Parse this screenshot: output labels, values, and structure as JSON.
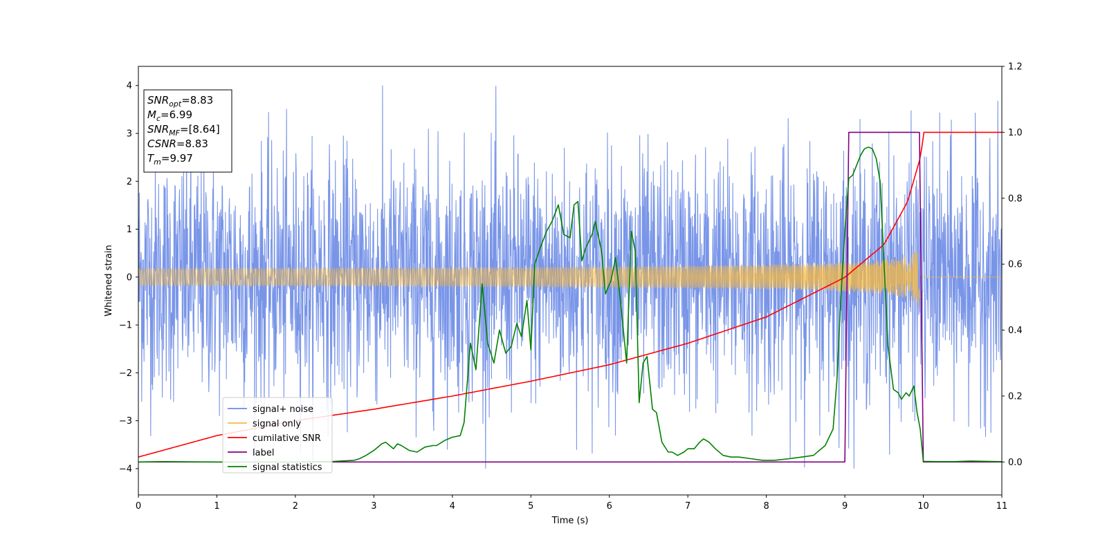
{
  "chart_data": {
    "type": "line",
    "title": "",
    "xlabel": "Time (s)",
    "ylabel": "Whitened strain",
    "xlim": [
      0,
      11
    ],
    "ylim_left": [
      -4.55,
      4.4
    ],
    "ylim_right": [
      -0.1,
      1.2
    ],
    "x_ticks": [
      0,
      1,
      2,
      3,
      4,
      5,
      6,
      7,
      8,
      9,
      10,
      11
    ],
    "y_ticks_left": [
      -4,
      -3,
      -2,
      -1,
      0,
      1,
      2,
      3,
      4
    ],
    "y_ticks_right": [
      0.0,
      0.2,
      0.4,
      0.6,
      0.8,
      1.0,
      1.2
    ],
    "grid": false,
    "legend_position": "bottom-left",
    "series": [
      {
        "name": "signal+ noise",
        "axis": "left",
        "color": "#6a89e6",
        "description_kind": "noise",
        "x_range": [
          0,
          11
        ],
        "envelope_abs": 2.3,
        "peak_abs_max": 4.0,
        "samples": 2600
      },
      {
        "name": "signal only",
        "axis": "left",
        "color": "#f5b942",
        "description_kind": "chirp",
        "x_range": [
          0,
          9.97
        ],
        "amplitude_start": 0.03,
        "amplitude_end": 0.75,
        "after_merger_value": 0.0
      },
      {
        "name": "cumilative SNR",
        "axis": "right",
        "color": "#ff0000",
        "x": [
          0,
          1,
          2,
          3,
          4,
          5,
          6,
          7,
          8,
          9,
          9.5,
          9.8,
          9.97,
          10.0,
          11
        ],
        "values": [
          0.015,
          0.08,
          0.125,
          0.16,
          0.2,
          0.245,
          0.295,
          0.36,
          0.44,
          0.56,
          0.66,
          0.79,
          0.93,
          1.0,
          1.0
        ]
      },
      {
        "name": "label",
        "axis": "right",
        "color": "#800080",
        "x": [
          0,
          9.0,
          9.05,
          9.95,
          10.0,
          11
        ],
        "values": [
          0,
          0,
          1,
          1,
          0,
          0
        ]
      },
      {
        "name": "signal statistics",
        "axis": "right",
        "color": "#008000",
        "x": [
          0,
          0.3,
          1,
          2,
          2.5,
          2.75,
          2.82,
          2.9,
          3.0,
          3.1,
          3.15,
          3.2,
          3.25,
          3.3,
          3.35,
          3.45,
          3.55,
          3.65,
          3.75,
          3.8,
          3.9,
          4.0,
          4.1,
          4.15,
          4.23,
          4.3,
          4.38,
          4.45,
          4.53,
          4.6,
          4.68,
          4.75,
          4.82,
          4.88,
          4.95,
          5.0,
          5.05,
          5.12,
          5.2,
          5.27,
          5.35,
          5.42,
          5.5,
          5.55,
          5.6,
          5.65,
          5.7,
          5.78,
          5.82,
          5.9,
          5.95,
          6.02,
          6.08,
          6.15,
          6.22,
          6.28,
          6.33,
          6.38,
          6.43,
          6.48,
          6.55,
          6.6,
          6.67,
          6.75,
          6.8,
          6.87,
          6.95,
          7.0,
          7.08,
          7.15,
          7.2,
          7.27,
          7.35,
          7.45,
          7.55,
          7.65,
          7.8,
          7.95,
          8.1,
          8.3,
          8.45,
          8.6,
          8.75,
          8.85,
          8.9,
          8.95,
          9.0,
          9.05,
          9.1,
          9.15,
          9.2,
          9.25,
          9.3,
          9.35,
          9.4,
          9.45,
          9.5,
          9.55,
          9.62,
          9.68,
          9.72,
          9.78,
          9.82,
          9.88,
          9.92,
          9.96,
          10.0,
          10.2,
          10.4,
          10.6,
          10.8,
          11.0
        ],
        "values": [
          0.0,
          0.001,
          0.0,
          0.0,
          0.002,
          0.005,
          0.01,
          0.02,
          0.035,
          0.055,
          0.06,
          0.05,
          0.04,
          0.055,
          0.05,
          0.035,
          0.03,
          0.045,
          0.05,
          0.05,
          0.065,
          0.075,
          0.08,
          0.12,
          0.36,
          0.28,
          0.54,
          0.36,
          0.3,
          0.4,
          0.33,
          0.35,
          0.42,
          0.38,
          0.49,
          0.34,
          0.6,
          0.65,
          0.7,
          0.73,
          0.78,
          0.69,
          0.68,
          0.78,
          0.79,
          0.61,
          0.65,
          0.69,
          0.73,
          0.64,
          0.51,
          0.55,
          0.62,
          0.47,
          0.3,
          0.7,
          0.64,
          0.18,
          0.3,
          0.32,
          0.16,
          0.15,
          0.06,
          0.03,
          0.03,
          0.02,
          0.03,
          0.04,
          0.04,
          0.06,
          0.07,
          0.06,
          0.04,
          0.02,
          0.015,
          0.015,
          0.01,
          0.005,
          0.005,
          0.01,
          0.015,
          0.02,
          0.05,
          0.1,
          0.25,
          0.5,
          0.7,
          0.86,
          0.87,
          0.9,
          0.93,
          0.95,
          0.955,
          0.95,
          0.92,
          0.85,
          0.6,
          0.35,
          0.22,
          0.21,
          0.19,
          0.21,
          0.2,
          0.23,
          0.15,
          0.1,
          0.002,
          0.001,
          0.001,
          0.003,
          0.002,
          0.001
        ]
      }
    ],
    "annotation": {
      "lines": [
        {
          "main": "SNR",
          "sub": "opt",
          "rest": "=8.83"
        },
        {
          "main": "M",
          "sub": "c",
          "rest": "=6.99"
        },
        {
          "main": "SNR",
          "sub": "MF",
          "rest": "=[8.64]"
        },
        {
          "main": "CSNR",
          "sub": "",
          "rest": "=8.83"
        },
        {
          "main": "T",
          "sub": "m",
          "rest": "=9.97"
        }
      ]
    }
  }
}
